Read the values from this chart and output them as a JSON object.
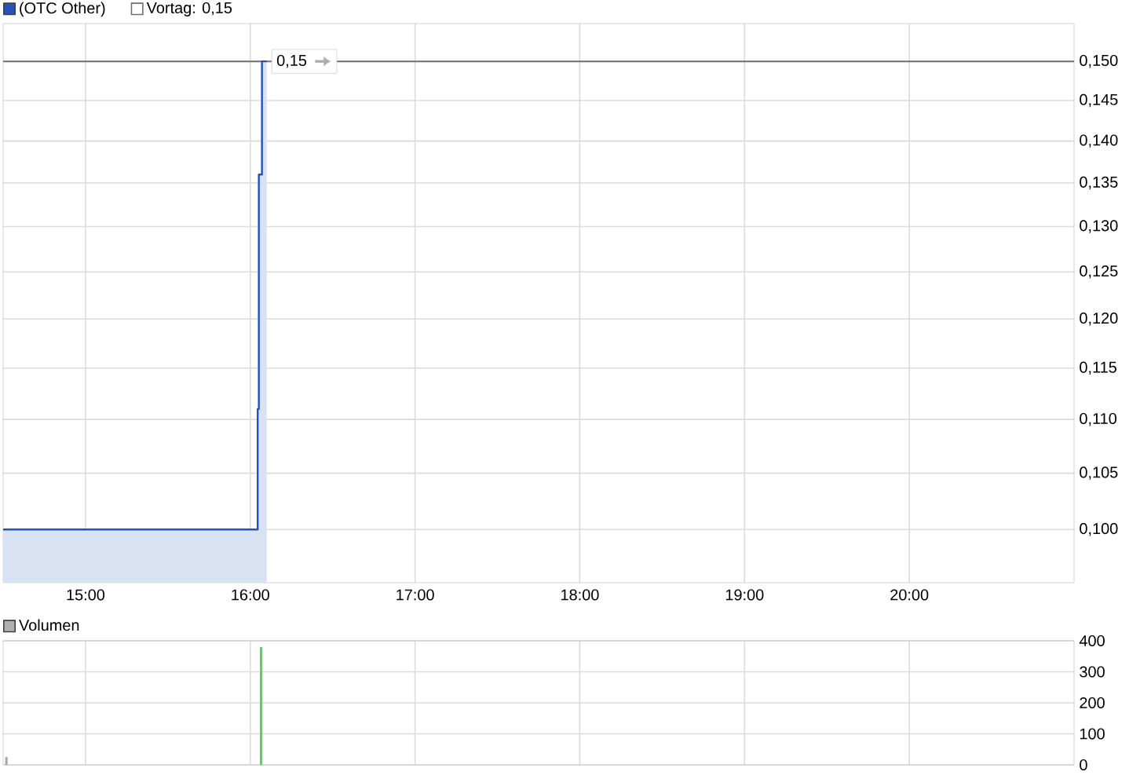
{
  "chart_data": [
    {
      "type": "area",
      "x": [
        14.5,
        16.045,
        16.045,
        16.052,
        16.052,
        16.071,
        16.071,
        16.1
      ],
      "series": [
        {
          "name": "(OTC Other)",
          "color": "#2255bb",
          "values": [
            0.1,
            0.1,
            0.111,
            0.111,
            0.136,
            0.136,
            0.15,
            0.15
          ]
        }
      ],
      "xlim": [
        14.5,
        21.0
      ],
      "xticks": [
        {
          "value": 15,
          "label": "15:00"
        },
        {
          "value": 16,
          "label": "16:00"
        },
        {
          "value": 17,
          "label": "17:00"
        },
        {
          "value": 18,
          "label": "18:00"
        },
        {
          "value": 19,
          "label": "19:00"
        },
        {
          "value": 20,
          "label": "20:00"
        }
      ],
      "ylim": [
        0.0955,
        0.155
      ],
      "yticks": [
        {
          "value": 0.1,
          "label": "0,100"
        },
        {
          "value": 0.105,
          "label": "0,105"
        },
        {
          "value": 0.11,
          "label": "0,110"
        },
        {
          "value": 0.115,
          "label": "0,115"
        },
        {
          "value": 0.12,
          "label": "0,120"
        },
        {
          "value": 0.125,
          "label": "0,125"
        },
        {
          "value": 0.13,
          "label": "0,130"
        },
        {
          "value": 0.135,
          "label": "0,135"
        },
        {
          "value": 0.14,
          "label": "0,140"
        },
        {
          "value": 0.145,
          "label": "0,145"
        },
        {
          "value": 0.15,
          "label": "0,150"
        }
      ],
      "log": "y",
      "grid": true,
      "legend": "top left",
      "ref_lines": [
        {
          "axis": "y",
          "value": 0.15,
          "label": "Vortag: 0,15",
          "color": "#707070"
        }
      ],
      "annotations": [
        {
          "text": "0,15",
          "x": 16.1,
          "y": 0.15
        }
      ]
    },
    {
      "type": "bar",
      "x": [
        14.52,
        16.066
      ],
      "series": [
        {
          "name": "Volumen",
          "color": "#b0b0b0",
          "colors": [
            "#a8a8a8",
            "#66cc66"
          ],
          "values": [
            25,
            380
          ]
        }
      ],
      "xlim": [
        14.5,
        21.0
      ],
      "xticks": [
        {
          "value": 15,
          "label": null
        },
        {
          "value": 16,
          "label": null
        },
        {
          "value": 17,
          "label": null
        },
        {
          "value": 18,
          "label": null
        },
        {
          "value": 19,
          "label": null
        },
        {
          "value": 20,
          "label": null
        }
      ],
      "ylim": [
        0,
        400
      ],
      "yticks": [
        0,
        100,
        200,
        300,
        400
      ],
      "grid": true,
      "legend": "top left",
      "tick_labels": "y"
    }
  ]
}
